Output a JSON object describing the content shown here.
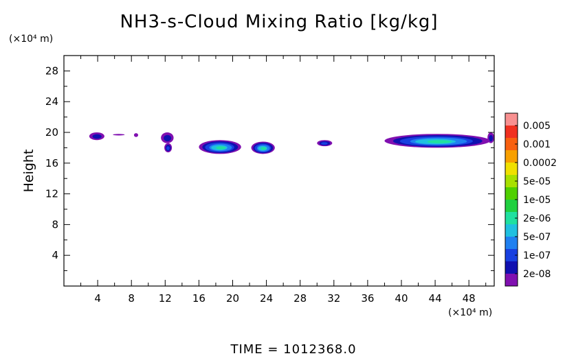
{
  "chart_data": {
    "type": "heatmap",
    "title": "NH3-s-Cloud Mixing Ratio [kg/kg]",
    "xlabel": "",
    "x_unit": "(×10⁴ m)",
    "ylabel": "Height",
    "y_unit": "(×10⁴ m)",
    "xlim": [
      0,
      51
    ],
    "ylim": [
      0,
      30
    ],
    "x_ticks": [
      "4",
      "8",
      "12",
      "16",
      "20",
      "24",
      "28",
      "32",
      "36",
      "40",
      "44",
      "48"
    ],
    "y_ticks": [
      "4",
      "8",
      "12",
      "16",
      "20",
      "24",
      "28"
    ],
    "colorbar": {
      "labels": [
        "0.005",
        "0.001",
        "0.0002",
        "5e-05",
        "1e-05",
        "2e-06",
        "5e-07",
        "1e-07",
        "2e-08"
      ],
      "colors": [
        "#f89090",
        "#f03020",
        "#f86010",
        "#f8a000",
        "#f0e000",
        "#a8e000",
        "#50d000",
        "#20d040",
        "#20e0a0",
        "#20c0e0",
        "#2080f0",
        "#1840e0",
        "#1010b0",
        "#8010b0"
      ]
    },
    "cloud_patches": [
      {
        "x": [
          3.0,
          4.8
        ],
        "y": [
          19.0,
          20.0
        ],
        "level": "1e-07"
      },
      {
        "x": [
          5.8,
          7.2
        ],
        "y": [
          19.6,
          19.8
        ],
        "level": "2e-08"
      },
      {
        "x": [
          8.3,
          8.8
        ],
        "y": [
          19.4,
          19.9
        ],
        "level": "2e-08"
      },
      {
        "x": [
          11.5,
          13.0
        ],
        "y": [
          18.6,
          20.0
        ],
        "level": "1e-07"
      },
      {
        "x": [
          11.9,
          12.8
        ],
        "y": [
          17.4,
          18.6
        ],
        "level": "5e-07"
      },
      {
        "x": [
          16.0,
          21.0
        ],
        "y": [
          17.2,
          19.0
        ],
        "level": "1e-05"
      },
      {
        "x": [
          22.2,
          25.0
        ],
        "y": [
          17.2,
          18.8
        ],
        "level": "1e-05"
      },
      {
        "x": [
          30.0,
          31.8
        ],
        "y": [
          18.2,
          19.0
        ],
        "level": "5e-07"
      },
      {
        "x": [
          38.0,
          50.5
        ],
        "y": [
          18.0,
          19.8
        ],
        "level": "1e-05"
      },
      {
        "x": [
          50.2,
          51.0
        ],
        "y": [
          18.6,
          20.0
        ],
        "level": "1e-07"
      }
    ]
  },
  "footer": {
    "time_text": "TIME  =  1012368.0"
  }
}
